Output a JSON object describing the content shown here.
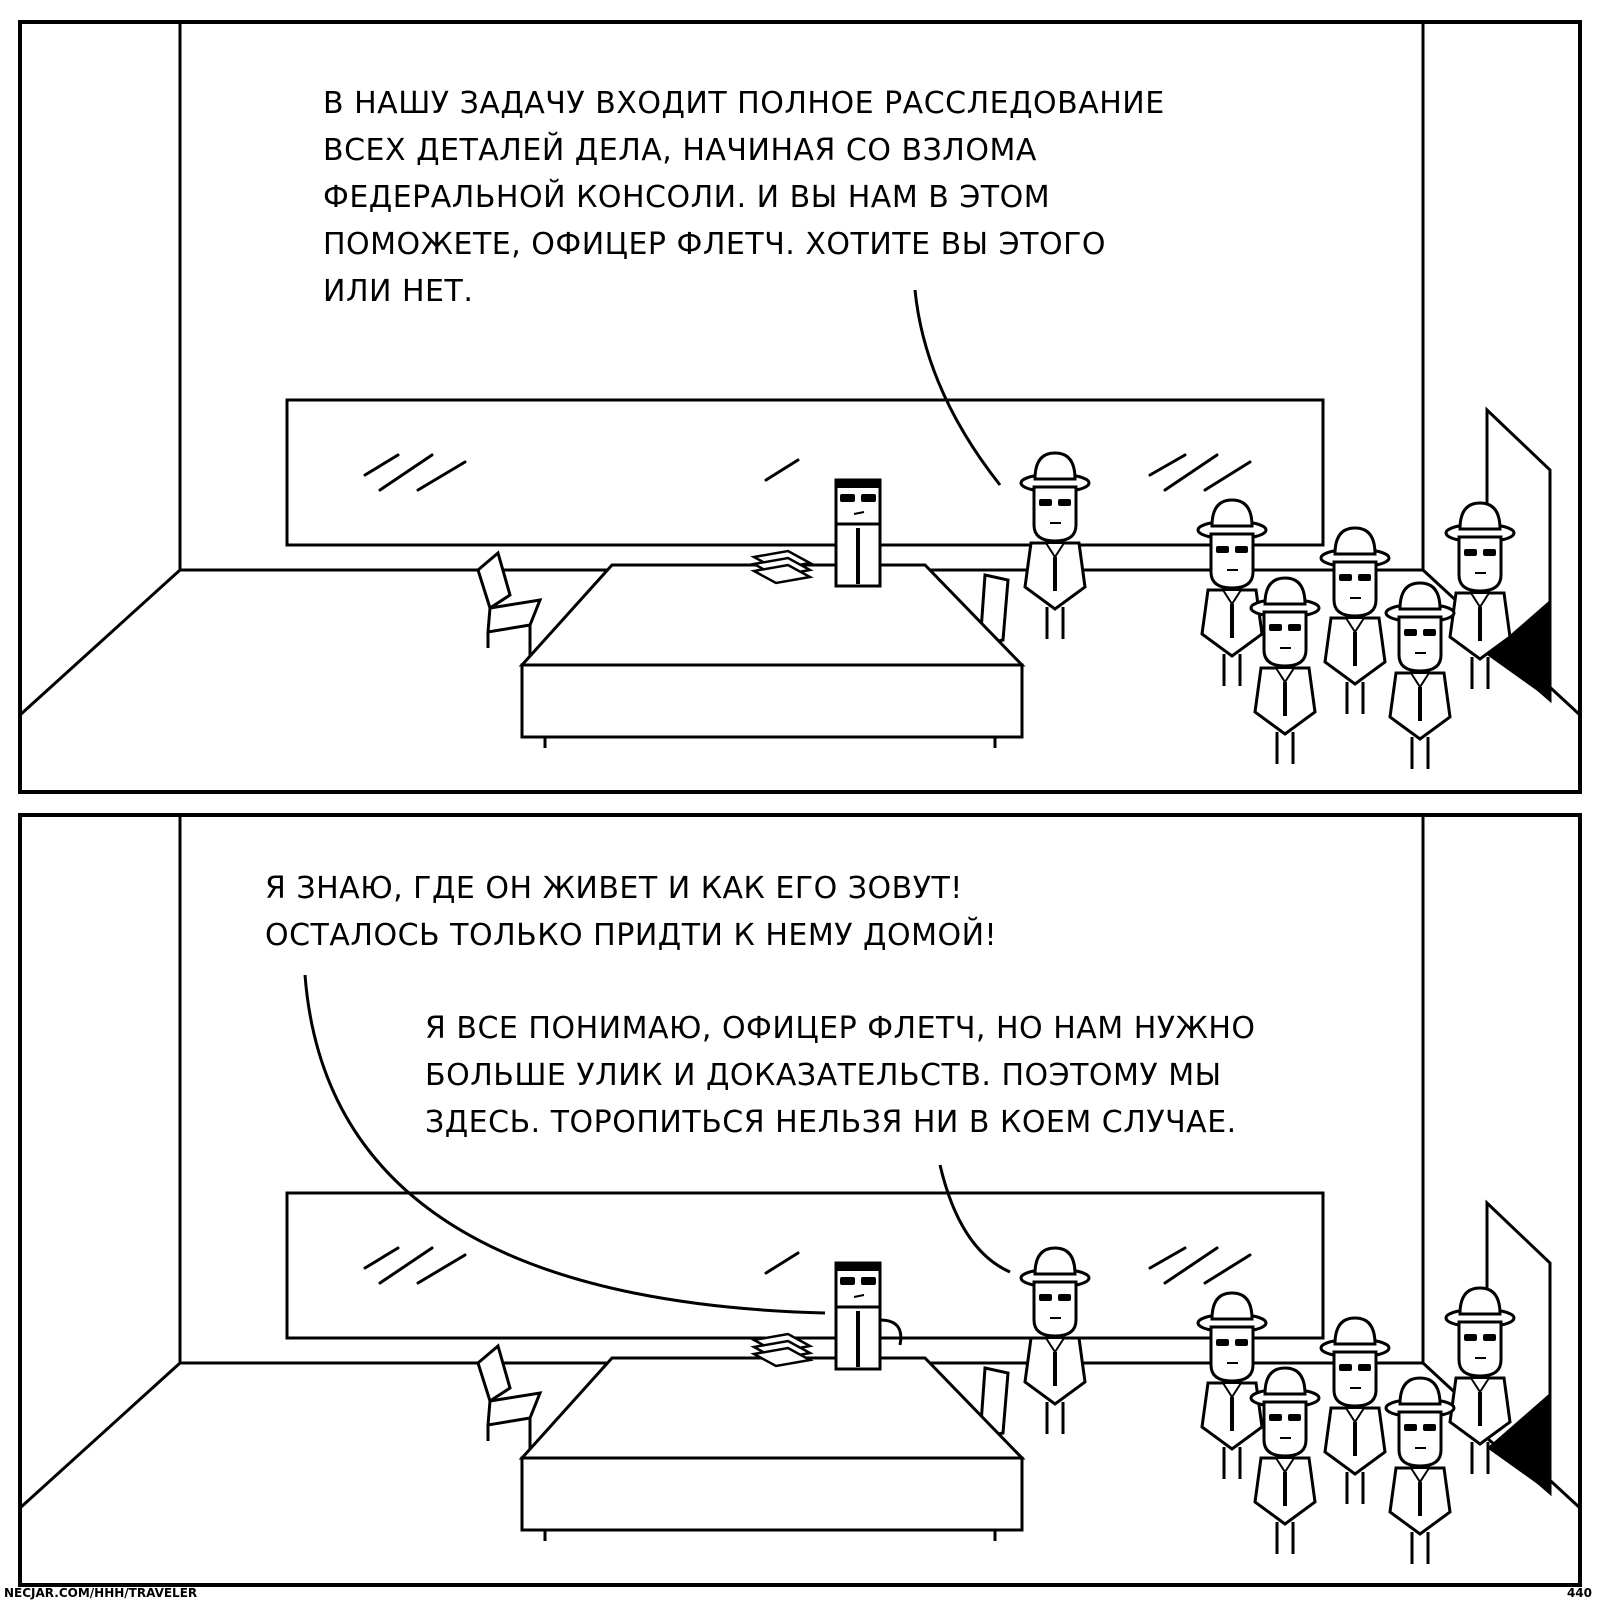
{
  "panels": [
    {
      "bubbles": [
        {
          "text": "В нашу задачу входит полное расследование\nвсех деталей дела, начиная со взлома\nФедеральной консоли. И вы нам в этом\nпоможете, офицер Флетч. Хотите вы этого\nили нет."
        }
      ]
    },
    {
      "bubbles": [
        {
          "text": "Я знаю, где он живет и как его зовут!\nОсталось только придти к нему домой!"
        },
        {
          "text": "Я все понимаю, офицер Флетч, но нам нужно\nбольше улик и доказательств. Поэтому мы\nздесь. Торопиться нельзя ни в коем случае."
        }
      ]
    }
  ],
  "footer": {
    "source": "necjar.com/hhh/traveler",
    "page_number": "440"
  }
}
